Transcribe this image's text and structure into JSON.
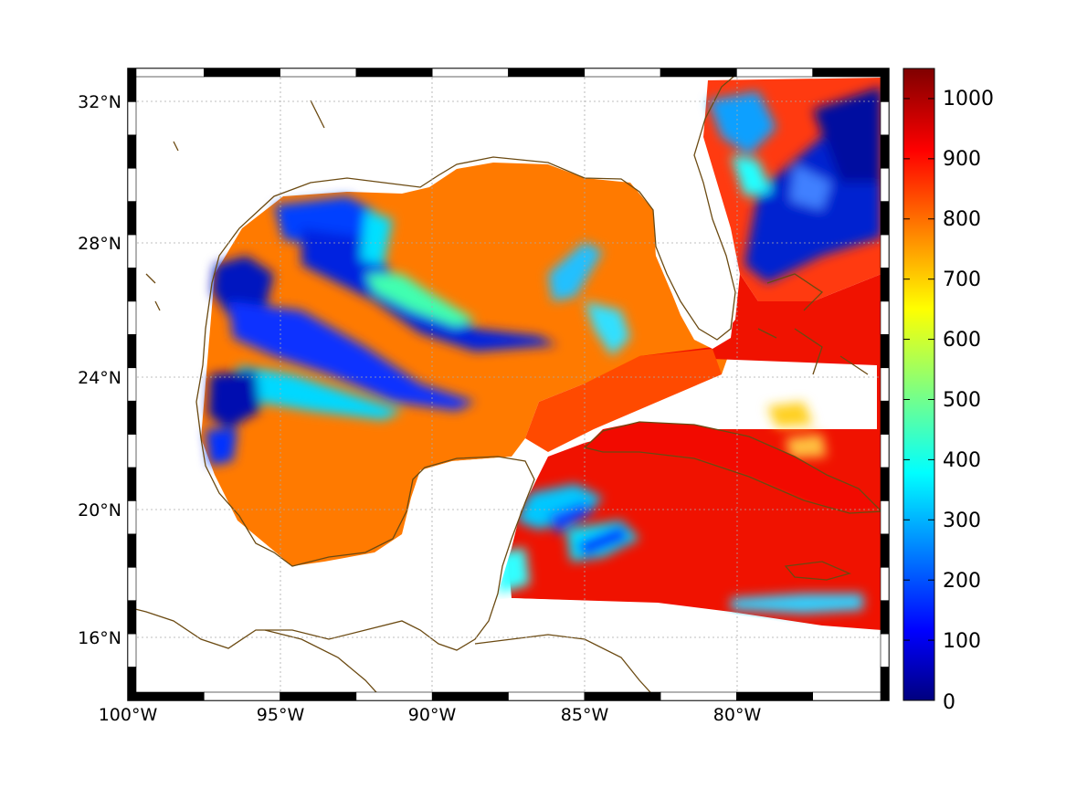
{
  "map": {
    "lat_labels": [
      "32°N",
      "28°N",
      "24°N",
      "20°N",
      "16°N"
    ],
    "lon_labels": [
      "100°W",
      "95°W",
      "90°W",
      "85°W",
      "80°W"
    ],
    "lat_range": [
      14.0,
      33.0
    ],
    "lon_range": [
      -100.0,
      -75.0
    ],
    "grid": "dotted",
    "land_color": "#ffffff",
    "coast_color": "#6b4a12",
    "colormap": "jet"
  },
  "colorbar": {
    "ticks": [
      "1000",
      "900",
      "800",
      "700",
      "600",
      "500",
      "400",
      "300",
      "200",
      "100",
      "0"
    ],
    "range": [
      0,
      1050
    ],
    "colors": [
      "#7f0000",
      "#ff0000",
      "#ff7f00",
      "#ffff00",
      "#7fff7f",
      "#00ffff",
      "#0080ff",
      "#0000ff",
      "#00007f"
    ]
  }
}
